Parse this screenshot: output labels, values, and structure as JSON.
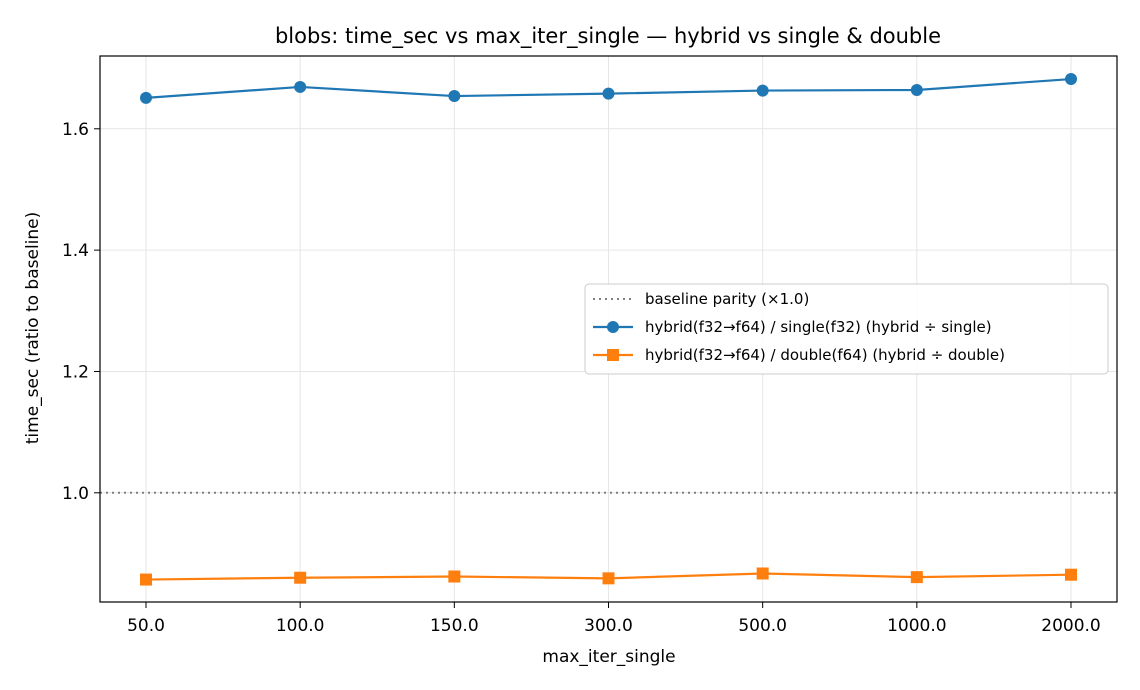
{
  "chart_data": {
    "type": "line",
    "title": "blobs: time_sec vs max_iter_single — hybrid vs single & double",
    "xlabel": "max_iter_single",
    "ylabel": "time_sec (ratio to baseline)",
    "categories": [
      "50.0",
      "100.0",
      "150.0",
      "300.0",
      "500.0",
      "1000.0",
      "2000.0"
    ],
    "ylim": [
      0.82,
      1.72
    ],
    "yticks": [
      1.0,
      1.2,
      1.4,
      1.6
    ],
    "ytick_labels": [
      "1.0",
      "1.2",
      "1.4",
      "1.6"
    ],
    "grid": true,
    "legend_position": "center-right",
    "baseline": {
      "name": "baseline parity (×1.0)",
      "value": 1.0,
      "color": "#808080",
      "style": "dotted"
    },
    "series": [
      {
        "name": "hybrid(f32→f64) / single(f32)  (hybrid ÷ single)",
        "values": [
          1.651,
          1.669,
          1.654,
          1.658,
          1.663,
          1.664,
          1.682
        ],
        "color": "#1f77b4",
        "marker": "circle"
      },
      {
        "name": "hybrid(f32→f64) / double(f64)  (hybrid ÷ double)",
        "values": [
          0.857,
          0.86,
          0.862,
          0.859,
          0.867,
          0.861,
          0.865
        ],
        "color": "#ff7f0e",
        "marker": "square"
      }
    ]
  }
}
